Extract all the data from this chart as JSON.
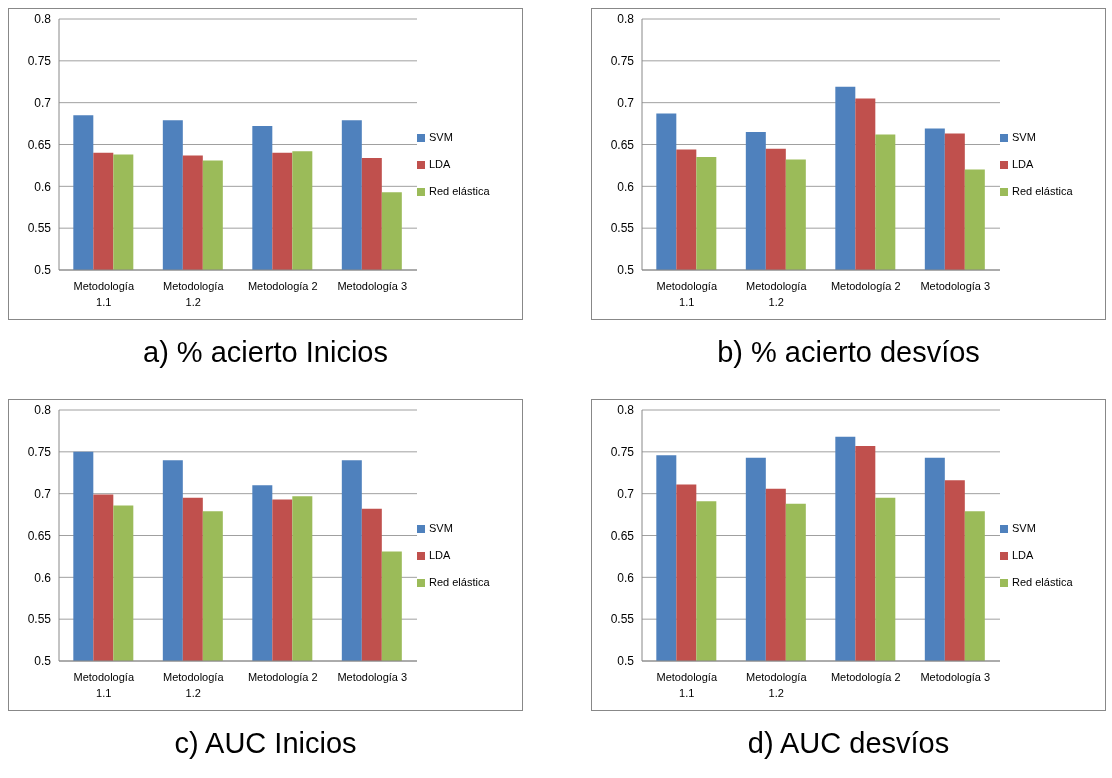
{
  "chart_data": [
    {
      "type": "bar",
      "title": "a) % acierto Inicios",
      "categories": [
        "Metodología 1.1",
        "Metodología 1.2",
        "Metodología 2",
        "Metodología 3"
      ],
      "series": [
        {
          "name": "SVM",
          "color": "#4f81bd",
          "values": [
            0.685,
            0.679,
            0.672,
            0.679
          ]
        },
        {
          "name": "LDA",
          "color": "#c0504d",
          "values": [
            0.64,
            0.637,
            0.64,
            0.634
          ]
        },
        {
          "name": "Red elástica",
          "color": "#9bbb59",
          "values": [
            0.638,
            0.631,
            0.642,
            0.593
          ]
        }
      ],
      "ylim": [
        0.5,
        0.8
      ],
      "yticks": [
        0.5,
        0.55,
        0.6,
        0.65,
        0.7,
        0.75,
        0.8
      ],
      "grid": "y",
      "legend": "right"
    },
    {
      "type": "bar",
      "title": "b) % acierto desvíos",
      "categories": [
        "Metodología 1.1",
        "Metodología 1.2",
        "Metodología 2",
        "Metodología 3"
      ],
      "series": [
        {
          "name": "SVM",
          "color": "#4f81bd",
          "values": [
            0.687,
            0.665,
            0.719,
            0.669
          ]
        },
        {
          "name": "LDA",
          "color": "#c0504d",
          "values": [
            0.644,
            0.645,
            0.705,
            0.663
          ]
        },
        {
          "name": "Red elástica",
          "color": "#9bbb59",
          "values": [
            0.635,
            0.632,
            0.662,
            0.62
          ]
        }
      ],
      "ylim": [
        0.5,
        0.8
      ],
      "yticks": [
        0.5,
        0.55,
        0.6,
        0.65,
        0.7,
        0.75,
        0.8
      ],
      "grid": "y",
      "legend": "right"
    },
    {
      "type": "bar",
      "title": "c) AUC Inicios",
      "categories": [
        "Metodología 1.1",
        "Metodología 1.2",
        "Metodología 2",
        "Metodología 3"
      ],
      "series": [
        {
          "name": "SVM",
          "color": "#4f81bd",
          "values": [
            0.75,
            0.74,
            0.71,
            0.74
          ]
        },
        {
          "name": "LDA",
          "color": "#c0504d",
          "values": [
            0.699,
            0.695,
            0.693,
            0.682
          ]
        },
        {
          "name": "Red elástica",
          "color": "#9bbb59",
          "values": [
            0.686,
            0.679,
            0.697,
            0.631
          ]
        }
      ],
      "ylim": [
        0.5,
        0.8
      ],
      "yticks": [
        0.5,
        0.55,
        0.6,
        0.65,
        0.7,
        0.75,
        0.8
      ],
      "grid": "y",
      "legend": "right"
    },
    {
      "type": "bar",
      "title": "d) AUC desvíos",
      "categories": [
        "Metodología 1.1",
        "Metodología 1.2",
        "Metodología 2",
        "Metodología 3"
      ],
      "series": [
        {
          "name": "SVM",
          "color": "#4f81bd",
          "values": [
            0.746,
            0.743,
            0.768,
            0.743
          ]
        },
        {
          "name": "LDA",
          "color": "#c0504d",
          "values": [
            0.711,
            0.706,
            0.757,
            0.716
          ]
        },
        {
          "name": "Red elástica",
          "color": "#9bbb59",
          "values": [
            0.691,
            0.688,
            0.695,
            0.679
          ]
        }
      ],
      "ylim": [
        0.5,
        0.8
      ],
      "yticks": [
        0.5,
        0.55,
        0.6,
        0.65,
        0.7,
        0.75,
        0.8
      ],
      "grid": "y",
      "legend": "right"
    }
  ]
}
